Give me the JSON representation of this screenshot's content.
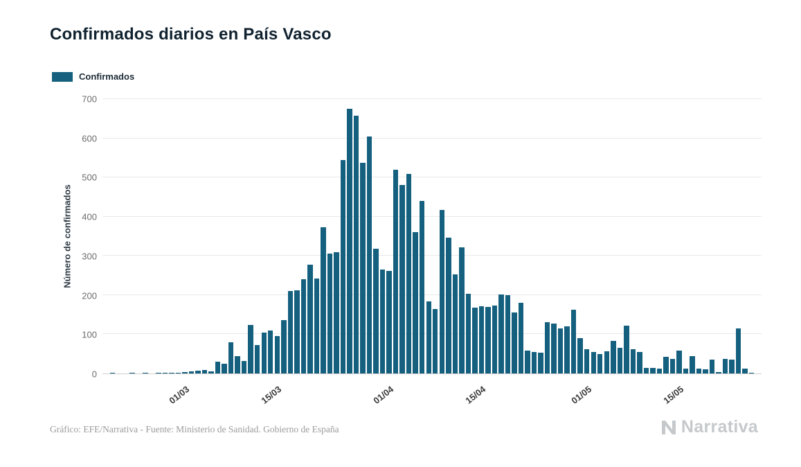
{
  "chart": {
    "title": "Confirmados diarios en País Vasco",
    "legend_label": "Confirmados",
    "ylabel": "Número de confirmados"
  },
  "footer": {
    "credit": "Gráfico: EFE/Narrativa - Fuente: Ministerio de Sanidad. Gobierno de España",
    "brand": "Narrativa"
  },
  "colors": {
    "bar": "#14607E",
    "gridline": "#e8e8e8",
    "axis_text": "#6b6b6b",
    "title_text": "#10222f",
    "brand_gray": "#c6c9cc"
  },
  "chart_data": {
    "type": "bar",
    "title": "Confirmados diarios en País Vasco",
    "xlabel": "",
    "ylabel": "Número de confirmados",
    "legend": [
      "Confirmados"
    ],
    "legend_position": "top-left",
    "grid": "horizontal",
    "ylim": [
      0,
      700
    ],
    "yticks": [
      0,
      100,
      200,
      300,
      400,
      500,
      600,
      700
    ],
    "xtick_labels": [
      "01/03",
      "15/03",
      "01/04",
      "15/04",
      "01/05",
      "15/05"
    ],
    "color": "#14607E",
    "x": [
      "18/02",
      "19/02",
      "20/02",
      "21/02",
      "22/02",
      "23/02",
      "24/02",
      "25/02",
      "26/02",
      "27/02",
      "28/02",
      "29/02",
      "01/03",
      "02/03",
      "03/03",
      "04/03",
      "05/03",
      "06/03",
      "07/03",
      "08/03",
      "09/03",
      "10/03",
      "11/03",
      "12/03",
      "13/03",
      "14/03",
      "15/03",
      "16/03",
      "17/03",
      "18/03",
      "19/03",
      "20/03",
      "21/03",
      "22/03",
      "23/03",
      "24/03",
      "25/03",
      "26/03",
      "27/03",
      "28/03",
      "29/03",
      "30/03",
      "31/03",
      "01/04",
      "02/04",
      "03/04",
      "04/04",
      "05/04",
      "06/04",
      "07/04",
      "08/04",
      "09/04",
      "10/04",
      "11/04",
      "12/04",
      "13/04",
      "14/04",
      "15/04",
      "16/04",
      "17/04",
      "18/04",
      "19/04",
      "20/04",
      "21/04",
      "22/04",
      "23/04",
      "24/04",
      "25/04",
      "26/04",
      "27/04",
      "28/04",
      "29/04",
      "30/04",
      "01/05",
      "02/05",
      "03/05",
      "04/05",
      "05/05",
      "06/05",
      "07/05",
      "08/05",
      "09/05",
      "10/05",
      "11/05",
      "12/05",
      "13/05",
      "14/05",
      "15/05",
      "16/05",
      "17/05",
      "18/05",
      "19/05",
      "20/05",
      "21/05",
      "22/05",
      "23/05",
      "24/05",
      "25/05",
      "26/05",
      "27/05"
    ],
    "values": [
      0,
      1,
      0,
      0,
      1,
      0,
      1,
      0,
      1,
      1,
      2,
      2,
      4,
      6,
      7,
      8,
      6,
      30,
      25,
      79,
      45,
      31,
      123,
      72,
      105,
      110,
      96,
      137,
      210,
      212,
      240,
      277,
      242,
      373,
      305,
      310,
      545,
      675,
      657,
      538,
      605,
      318,
      265,
      262,
      519,
      481,
      510,
      360,
      440,
      183,
      165,
      418,
      347,
      252,
      322,
      203,
      168,
      172,
      170,
      173,
      202,
      200,
      155,
      180,
      58,
      55,
      53,
      130,
      128,
      115,
      120,
      162,
      90,
      62,
      55,
      50,
      57,
      83,
      65,
      122,
      62,
      55,
      15,
      15,
      13,
      42,
      38,
      58,
      12,
      45,
      13,
      10,
      35,
      4,
      38,
      35,
      115,
      12,
      1,
      0
    ]
  }
}
